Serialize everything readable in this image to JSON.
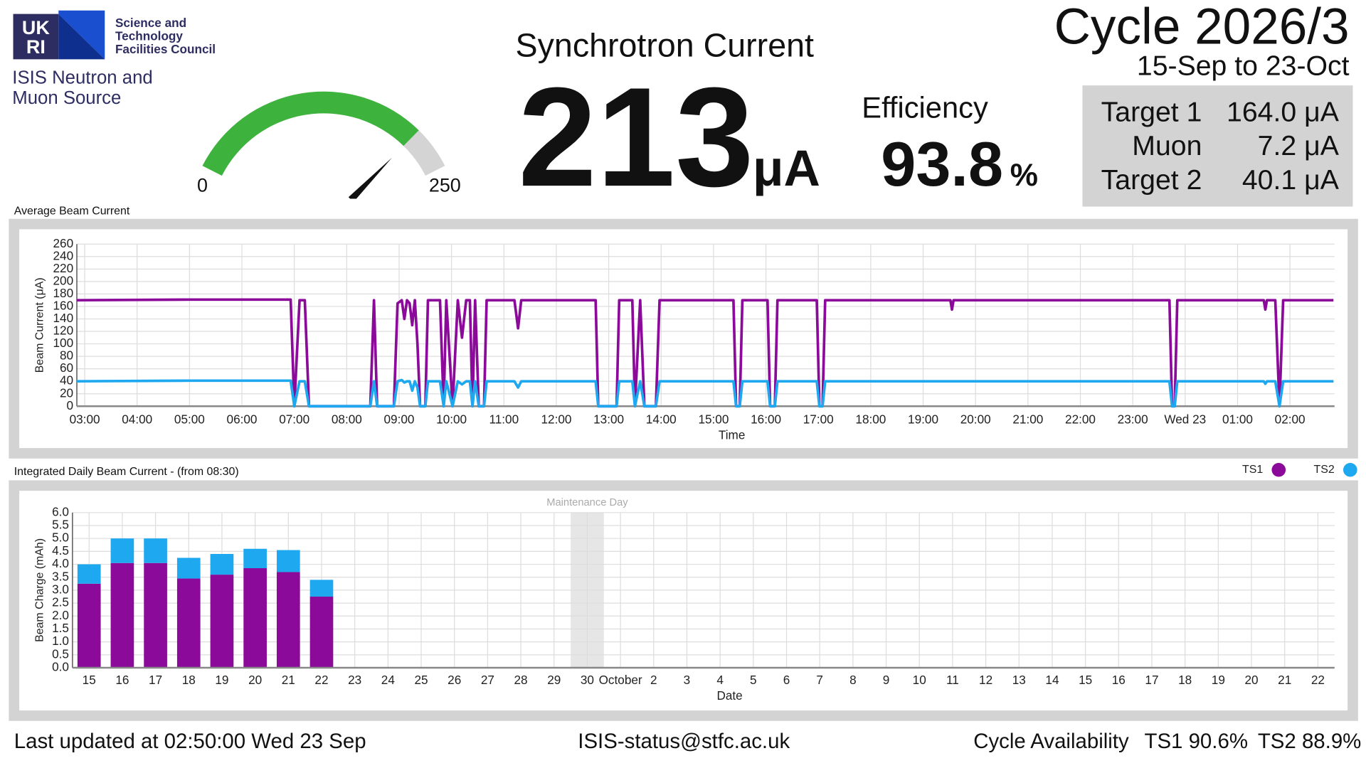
{
  "logo": {
    "mark": [
      "UK",
      "RI"
    ],
    "council": [
      "Science and",
      "Technology",
      "Facilities Council"
    ],
    "org": [
      "ISIS Neutron and",
      "Muon Source"
    ]
  },
  "header": {
    "title": "Synchrotron Current",
    "cycle": "Cycle 2026/3",
    "dates": "15-Sep to 23-Oct"
  },
  "efficiency": {
    "label": "Efficiency",
    "value": 93.8,
    "unit": "%"
  },
  "targets": [
    {
      "name": "Target 1",
      "value": "164.0 μA"
    },
    {
      "name": "Muon",
      "value": "7.2 μA"
    },
    {
      "name": "Target 2",
      "value": "40.1 μA"
    }
  ],
  "footer": {
    "updated": "Last updated at 02:50:00 Wed 23 Sep",
    "email": "ISIS-status@stfc.ac.uk",
    "availability": "Cycle Availability",
    "ts1": "TS1 90.6%",
    "ts2": "TS2 88.9%"
  },
  "chart_data": [
    {
      "type": "gauge",
      "value": 213,
      "unit": "μA",
      "ylim": [
        0,
        250
      ],
      "yticks": [
        0,
        250
      ],
      "color": "#3db33d",
      "track_color": "#d4d4d4"
    },
    {
      "type": "line",
      "title": "Average Beam Current",
      "xlabel": "Time",
      "ylabel": "Beam Current (μA)",
      "x": [
        2.85,
        5.0,
        6.93,
        7.0,
        7.1,
        7.2,
        7.28,
        8.45,
        8.52,
        8.58,
        8.9,
        8.97,
        9.05,
        9.1,
        9.15,
        9.2,
        9.25,
        9.3,
        9.35,
        9.4,
        9.5,
        9.55,
        9.78,
        9.85,
        9.9,
        10.02,
        10.12,
        10.2,
        10.28,
        10.35,
        10.4,
        10.45,
        10.52,
        10.62,
        10.67,
        11.2,
        11.27,
        11.33,
        12.75,
        12.8,
        13.15,
        13.2,
        13.45,
        13.5,
        13.6,
        13.68,
        13.9,
        13.97,
        15.38,
        15.43,
        15.5,
        15.55,
        16.03,
        16.08,
        16.17,
        16.22,
        16.97,
        17.02,
        17.08,
        17.13,
        19.52,
        19.55,
        19.58,
        23.7,
        23.75,
        23.8,
        23.85,
        25.5,
        25.53,
        25.56,
        25.72,
        25.8,
        25.87,
        26.83
      ],
      "series": [
        {
          "name": "TS1",
          "color": "#8b0a9a",
          "values": [
            170,
            171,
            171,
            0,
            170,
            170,
            0,
            0,
            170,
            0,
            0,
            165,
            170,
            140,
            170,
            165,
            130,
            170,
            100,
            0,
            0,
            170,
            170,
            0,
            170,
            0,
            170,
            110,
            170,
            170,
            0,
            170,
            0,
            0,
            170,
            170,
            125,
            170,
            170,
            0,
            0,
            170,
            170,
            0,
            170,
            0,
            0,
            170,
            170,
            0,
            0,
            170,
            170,
            0,
            0,
            170,
            170,
            0,
            0,
            170,
            170,
            155,
            170,
            170,
            0,
            0,
            170,
            170,
            155,
            170,
            170,
            0,
            170,
            170
          ]
        },
        {
          "name": "TS2",
          "color": "#1ea8ef",
          "values": [
            40,
            41,
            41,
            0,
            40,
            40,
            0,
            0,
            40,
            0,
            0,
            40,
            42,
            38,
            40,
            40,
            25,
            40,
            30,
            0,
            0,
            40,
            40,
            0,
            40,
            0,
            40,
            35,
            40,
            40,
            0,
            40,
            0,
            0,
            40,
            40,
            30,
            40,
            40,
            0,
            0,
            40,
            40,
            0,
            40,
            0,
            0,
            40,
            40,
            0,
            0,
            40,
            40,
            0,
            0,
            40,
            40,
            0,
            0,
            40,
            40,
            40,
            40,
            40,
            0,
            0,
            40,
            40,
            36,
            40,
            40,
            0,
            40,
            40
          ]
        }
      ],
      "xlim": [
        2.85,
        26.85
      ],
      "xticks": [
        {
          "value": 3,
          "label": "03:00"
        },
        {
          "value": 4,
          "label": "04:00"
        },
        {
          "value": 5,
          "label": "05:00"
        },
        {
          "value": 6,
          "label": "06:00"
        },
        {
          "value": 7,
          "label": "07:00"
        },
        {
          "value": 8,
          "label": "08:00"
        },
        {
          "value": 9,
          "label": "09:00"
        },
        {
          "value": 10,
          "label": "10:00"
        },
        {
          "value": 11,
          "label": "11:00"
        },
        {
          "value": 12,
          "label": "12:00"
        },
        {
          "value": 13,
          "label": "13:00"
        },
        {
          "value": 14,
          "label": "14:00"
        },
        {
          "value": 15,
          "label": "15:00"
        },
        {
          "value": 16,
          "label": "16:00"
        },
        {
          "value": 17,
          "label": "17:00"
        },
        {
          "value": 18,
          "label": "18:00"
        },
        {
          "value": 19,
          "label": "19:00"
        },
        {
          "value": 20,
          "label": "20:00"
        },
        {
          "value": 21,
          "label": "21:00"
        },
        {
          "value": 22,
          "label": "22:00"
        },
        {
          "value": 23,
          "label": "23:00"
        },
        {
          "value": 24,
          "label": "Wed 23"
        },
        {
          "value": 25,
          "label": "01:00"
        },
        {
          "value": 26,
          "label": "02:00"
        }
      ],
      "ylim": [
        0,
        260
      ],
      "yticks": [
        0,
        20,
        40,
        60,
        80,
        100,
        120,
        140,
        160,
        180,
        200,
        220,
        240,
        260
      ],
      "grid": true
    },
    {
      "type": "stacked_bar",
      "title": "Integrated Daily Beam Current - (from 08:30)",
      "xlabel": "Date",
      "ylabel": "Beam Charge (mAh)",
      "categories": [
        "15",
        "16",
        "17",
        "18",
        "19",
        "20",
        "21",
        "22",
        "23",
        "24",
        "25",
        "26",
        "27",
        "28",
        "29",
        "30",
        "October",
        "2",
        "3",
        "4",
        "5",
        "6",
        "7",
        "8",
        "9",
        "10",
        "11",
        "12",
        "13",
        "14",
        "15",
        "16",
        "17",
        "18",
        "19",
        "20",
        "21",
        "22"
      ],
      "series": [
        {
          "name": "TS1",
          "color": "#8b0a9a",
          "values": [
            3.25,
            4.05,
            4.05,
            3.45,
            3.6,
            3.85,
            3.7,
            2.75,
            null,
            null,
            null,
            null,
            null,
            null,
            null,
            null,
            null,
            null,
            null,
            null,
            null,
            null,
            null,
            null,
            null,
            null,
            null,
            null,
            null,
            null,
            null,
            null,
            null,
            null,
            null,
            null,
            null,
            null
          ]
        },
        {
          "name": "TS2",
          "color": "#1ea8ef",
          "values": [
            0.75,
            0.95,
            0.95,
            0.8,
            0.8,
            0.75,
            0.85,
            0.65,
            null,
            null,
            null,
            null,
            null,
            null,
            null,
            null,
            null,
            null,
            null,
            null,
            null,
            null,
            null,
            null,
            null,
            null,
            null,
            null,
            null,
            null,
            null,
            null,
            null,
            null,
            null,
            null,
            null,
            null
          ]
        }
      ],
      "annotation": {
        "text": "Maintenance Day",
        "category": "30"
      },
      "ylim": [
        0,
        6
      ],
      "yticks": [
        {
          "value": 0,
          "label": "0.0"
        },
        {
          "value": 0.5,
          "label": "0.5"
        },
        {
          "value": 1,
          "label": "1.0"
        },
        {
          "value": 1.5,
          "label": "1.5"
        },
        {
          "value": 2,
          "label": "2.0"
        },
        {
          "value": 2.5,
          "label": "2.5"
        },
        {
          "value": 3,
          "label": "3.0"
        },
        {
          "value": 3.5,
          "label": "3.5"
        },
        {
          "value": 4,
          "label": "4.0"
        },
        {
          "value": 4.5,
          "label": "4.5"
        },
        {
          "value": 5,
          "label": "5.0"
        },
        {
          "value": 5.5,
          "label": "5.5"
        },
        {
          "value": 6,
          "label": "6.0"
        }
      ],
      "grid": true,
      "legend": "top-right"
    }
  ]
}
